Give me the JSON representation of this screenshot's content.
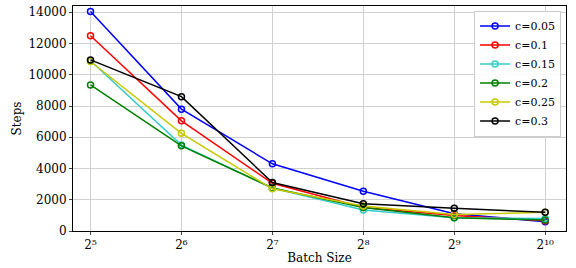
{
  "chart_data": {
    "type": "line",
    "x_label": "Batch Size",
    "y_label": "Steps",
    "x": [
      32,
      64,
      128,
      256,
      512,
      1024
    ],
    "series": [
      {
        "name": "c=0.05",
        "color": "#0000ff",
        "values": [
          14050,
          7800,
          4300,
          2550,
          1100,
          600
        ]
      },
      {
        "name": "c=0.1",
        "color": "#ff0000",
        "values": [
          12500,
          7050,
          3050,
          1500,
          1000,
          650
        ]
      },
      {
        "name": "c=0.15",
        "color": "#33cccc",
        "values": [
          10900,
          5500,
          2750,
          1350,
          850,
          800
        ]
      },
      {
        "name": "c=0.2",
        "color": "#008000",
        "values": [
          9350,
          5450,
          2750,
          1500,
          850,
          700
        ]
      },
      {
        "name": "c=0.25",
        "color": "#c8c800",
        "values": [
          10850,
          6250,
          2700,
          1600,
          1050,
          1200
        ]
      },
      {
        "name": "c=0.3",
        "color": "#000000",
        "values": [
          10950,
          8600,
          3100,
          1750,
          1450,
          1200
        ]
      }
    ],
    "log": "x",
    "xlim": [
      28,
      1200
    ],
    "xticks": [
      {
        "value": 32,
        "label": "2⁵"
      },
      {
        "value": 64,
        "label": "2⁶"
      },
      {
        "value": 128,
        "label": "2⁷"
      },
      {
        "value": 256,
        "label": "2⁸"
      },
      {
        "value": 512,
        "label": "2⁹"
      },
      {
        "value": 1024,
        "label": "2¹⁰"
      }
    ],
    "ylim": [
      0,
      14400
    ],
    "yticks": [
      0,
      2000,
      4000,
      6000,
      8000,
      10000,
      12000,
      14000
    ],
    "grid": true,
    "legend": "upper right",
    "marker": "circle-open",
    "line_style": "solid"
  }
}
